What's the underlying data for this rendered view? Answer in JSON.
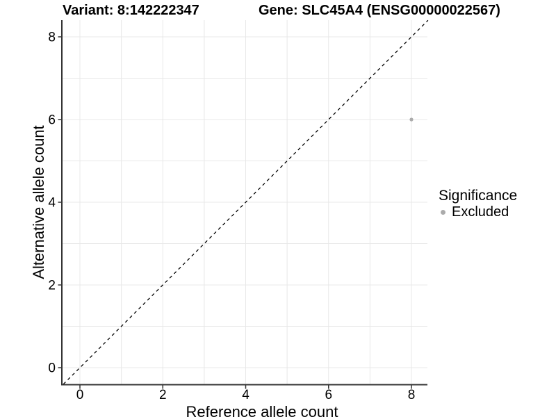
{
  "titles": {
    "variant": "Variant: 8:142222347",
    "gene": "Gene: SLC45A4 (ENSG00000022567)"
  },
  "axes": {
    "x_label": "Reference allele count",
    "y_label": "Alternative allele count"
  },
  "legend": {
    "title": "Significance",
    "entries": [
      {
        "label": "Excluded",
        "color": "#ababab"
      }
    ]
  },
  "colors": {
    "background": "#ffffff",
    "grid": "#e8e8e8",
    "axis_line": "#333333",
    "tick_mark": "#333333",
    "tick_text": "#000000",
    "reference_line": "#000000",
    "point": "#ababab"
  },
  "chart_data": {
    "type": "scatter",
    "title": "Variant: 8:142222347    Gene: SLC45A4 (ENSG00000022567)",
    "xlabel": "Reference allele count",
    "ylabel": "Alternative allele count",
    "xlim": [
      -0.4,
      8.4
    ],
    "ylim": [
      -0.4,
      8.4
    ],
    "x_ticks": [
      0,
      2,
      4,
      6,
      8
    ],
    "y_ticks": [
      0,
      2,
      4,
      6,
      8
    ],
    "grid": "on",
    "grid_interval": 1,
    "legend_position": "right",
    "legend_title": "Significance",
    "series": [
      {
        "name": "Excluded",
        "color": "#ababab",
        "point_radius": 2.6,
        "points": [
          [
            8,
            6
          ]
        ]
      }
    ],
    "reference_line": {
      "equation": "y = x",
      "style": "dashed",
      "color": "#000000",
      "x_range": [
        -0.4,
        8.4
      ]
    }
  }
}
